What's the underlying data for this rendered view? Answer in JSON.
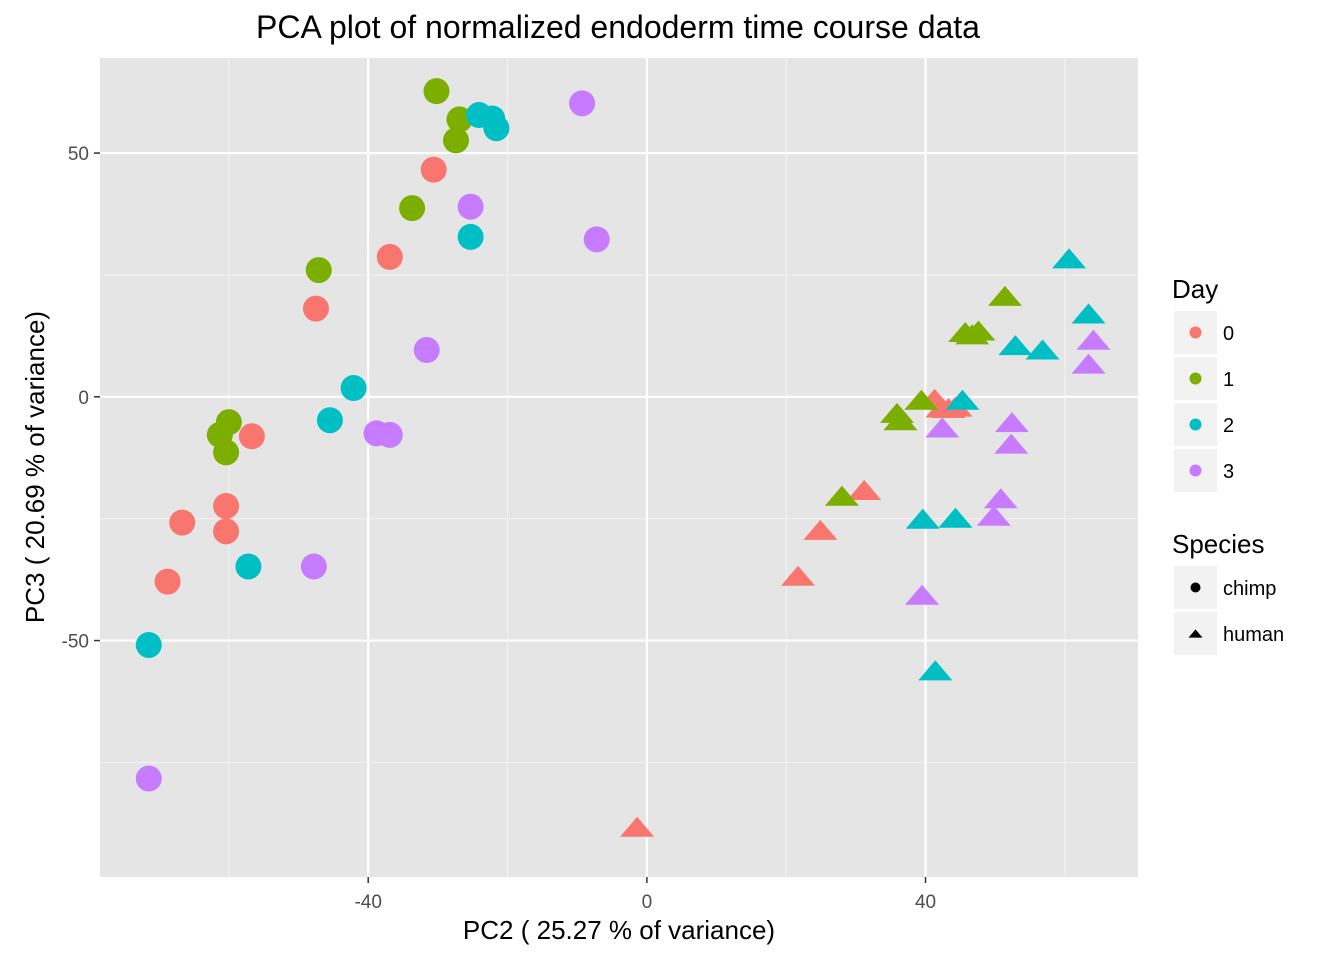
{
  "chart_data": {
    "type": "scatter",
    "title": "PCA plot of normalized endoderm time course data",
    "xlabel": "PC2 ( 25.27 % of variance)",
    "ylabel": "PC3 ( 20.69 % of variance)",
    "xlim": [
      -78.5,
      70.5
    ],
    "ylim": [
      -98.5,
      69.5
    ],
    "xticks": [
      -40,
      0,
      40
    ],
    "xtick_labels": [
      "-40",
      "0",
      "40"
    ],
    "yticks": [
      -50,
      0,
      50
    ],
    "ytick_labels": [
      "-50",
      "0",
      "50"
    ],
    "grid": true,
    "legend_position": "right",
    "colors": {
      "0": "#F8766D",
      "1": "#7CAE00",
      "2": "#00BFC4",
      "3": "#C77CFF"
    },
    "legend": {
      "color_title": "Day",
      "color_entries": [
        "0",
        "1",
        "2",
        "3"
      ],
      "shape_title": "Species",
      "shape_entries": [
        "chimp",
        "human"
      ]
    },
    "series": [
      {
        "name": "0",
        "species": "chimp",
        "points": [
          [
            -30.6,
            46.6
          ],
          [
            -36.9,
            28.7
          ],
          [
            -47.5,
            18.1
          ],
          [
            -56.7,
            -8.1
          ],
          [
            -60.4,
            -22.4
          ],
          [
            -60.4,
            -27.6
          ],
          [
            -66.7,
            -25.8
          ],
          [
            -68.8,
            -37.9
          ]
        ]
      },
      {
        "name": "1",
        "species": "chimp",
        "points": [
          [
            -30.2,
            62.7
          ],
          [
            -26.9,
            56.9
          ],
          [
            -27.4,
            52.6
          ],
          [
            -33.7,
            38.7
          ],
          [
            -47.1,
            26.0
          ],
          [
            -60.0,
            -5.2
          ],
          [
            -61.3,
            -7.8
          ],
          [
            -60.4,
            -11.4
          ]
        ]
      },
      {
        "name": "2",
        "species": "chimp",
        "points": [
          [
            -24.1,
            57.8
          ],
          [
            -22.2,
            57.1
          ],
          [
            -21.6,
            55.1
          ],
          [
            -25.3,
            32.8
          ],
          [
            -42.1,
            1.8
          ],
          [
            -45.5,
            -4.8
          ],
          [
            -57.2,
            -34.8
          ],
          [
            -71.5,
            -50.9
          ]
        ]
      },
      {
        "name": "3",
        "species": "chimp",
        "points": [
          [
            -9.3,
            60.2
          ],
          [
            -7.2,
            32.3
          ],
          [
            -25.3,
            39.0
          ],
          [
            -31.6,
            9.6
          ],
          [
            -38.8,
            -7.5
          ],
          [
            -36.9,
            -7.8
          ],
          [
            -47.8,
            -34.8
          ],
          [
            -71.5,
            -78.3
          ]
        ]
      },
      {
        "name": "0",
        "species": "human",
        "points": [
          [
            41.3,
            -0.4
          ],
          [
            42.4,
            -2.2
          ],
          [
            43.3,
            -2.3
          ],
          [
            44.3,
            -2.0
          ],
          [
            31.2,
            -19.1
          ],
          [
            24.9,
            -27.3
          ],
          [
            21.7,
            -36.7
          ],
          [
            -1.4,
            -88.2
          ]
        ]
      },
      {
        "name": "1",
        "species": "human",
        "points": [
          [
            51.4,
            20.7
          ],
          [
            45.7,
            13.3
          ],
          [
            47.6,
            13.6
          ],
          [
            46.7,
            12.8
          ],
          [
            39.4,
            -0.6
          ],
          [
            35.9,
            -3.3
          ],
          [
            36.4,
            -4.8
          ],
          [
            28.0,
            -20.3
          ]
        ]
      },
      {
        "name": "2",
        "species": "human",
        "points": [
          [
            60.6,
            28.4
          ],
          [
            63.4,
            17.1
          ],
          [
            52.9,
            10.6
          ],
          [
            56.8,
            9.7
          ],
          [
            45.3,
            -0.6
          ],
          [
            39.6,
            -25.0
          ],
          [
            44.3,
            -24.8
          ],
          [
            41.4,
            -56.1
          ]
        ]
      },
      {
        "name": "3",
        "species": "human",
        "points": [
          [
            64.1,
            11.7
          ],
          [
            63.4,
            6.8
          ],
          [
            52.4,
            -5.2
          ],
          [
            52.3,
            -9.6
          ],
          [
            42.4,
            -6.3
          ],
          [
            50.8,
            -20.8
          ],
          [
            49.8,
            -24.4
          ],
          [
            39.5,
            -40.6
          ]
        ]
      }
    ]
  }
}
